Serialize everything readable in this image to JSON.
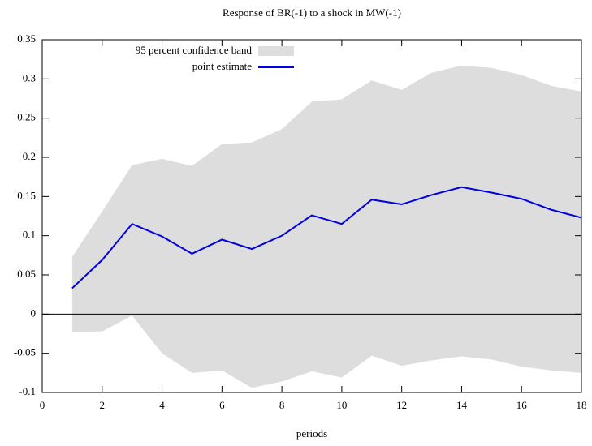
{
  "chart_data": {
    "type": "line",
    "title": "Response of BR(-1) to a shock in MW(-1)",
    "xlabel": "periods",
    "x": [
      1,
      2,
      3,
      4,
      5,
      6,
      7,
      8,
      9,
      10,
      11,
      12,
      13,
      14,
      15,
      16,
      17,
      18
    ],
    "series": [
      {
        "name": "point estimate",
        "color": "#0000e0",
        "values": [
          0.033,
          0.069,
          0.115,
          0.099,
          0.077,
          0.095,
          0.083,
          0.1,
          0.126,
          0.115,
          0.146,
          0.14,
          0.152,
          0.162,
          0.155,
          0.147,
          0.133,
          0.123
        ]
      }
    ],
    "band": {
      "name": "95 percent confidence band",
      "color": "#dddddd",
      "upper": [
        0.073,
        0.131,
        0.19,
        0.198,
        0.189,
        0.217,
        0.219,
        0.236,
        0.271,
        0.274,
        0.298,
        0.286,
        0.308,
        0.317,
        0.314,
        0.305,
        0.291,
        0.284
      ],
      "lower": [
        -0.023,
        -0.022,
        -0.002,
        -0.05,
        -0.075,
        -0.072,
        -0.094,
        -0.086,
        -0.073,
        -0.081,
        -0.053,
        -0.066,
        -0.059,
        -0.054,
        -0.058,
        -0.067,
        -0.072,
        -0.075
      ]
    },
    "xlim": [
      0,
      18
    ],
    "xticks": [
      0,
      2,
      4,
      6,
      8,
      10,
      12,
      14,
      16,
      18
    ],
    "ylim": [
      -0.1,
      0.35
    ],
    "yticks": [
      -0.1,
      -0.05,
      0,
      0.05,
      0.1,
      0.15,
      0.2,
      0.25,
      0.3,
      0.35
    ]
  }
}
